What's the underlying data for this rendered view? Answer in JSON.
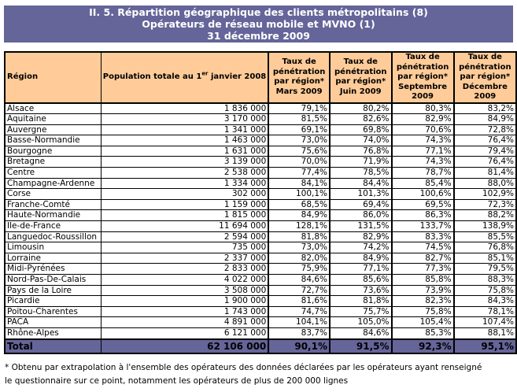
{
  "title": {
    "line1": "II. 5. Répartition géographique des clients métropolitains (8)",
    "line2": "Opérateurs de réseau mobile et MVNO (1)",
    "line3": "31 décembre 2009"
  },
  "colors": {
    "banner": "#65659a",
    "header": "#ffcc99"
  },
  "headers": {
    "region": "Région",
    "pop_pre": "Population totale au 1",
    "pop_sup": "er",
    "pop_post": " janvier 2008",
    "rate": [
      "Taux de pénétration par région* Mars 2009",
      "Taux de pénétration par région* Juin 2009",
      "Taux de pénétration par région* Septembre 2009",
      "Taux de pénétration par région* Décembre 2009"
    ]
  },
  "rows": [
    [
      "Alsace",
      "1 836 000",
      "79,1%",
      "80,2%",
      "80,3%",
      "83,2%"
    ],
    [
      "Aquitaine",
      "3 170 000",
      "81,5%",
      "82,6%",
      "82,9%",
      "84,9%"
    ],
    [
      "Auvergne",
      "1 341 000",
      "69,1%",
      "69,8%",
      "70,6%",
      "72,8%"
    ],
    [
      "Basse-Normandie",
      "1 463 000",
      "73,0%",
      "74,0%",
      "74,3%",
      "76,4%"
    ],
    [
      "Bourgogne",
      "1 631 000",
      "75,6%",
      "76,8%",
      "77,1%",
      "79,4%"
    ],
    [
      "Bretagne",
      "3 139 000",
      "70,0%",
      "71,9%",
      "74,3%",
      "76,4%"
    ],
    [
      "Centre",
      "2 538 000",
      "77,4%",
      "78,5%",
      "78,7%",
      "81,4%"
    ],
    [
      "Champagne-Ardenne",
      "1 334 000",
      "84,1%",
      "84,4%",
      "85,4%",
      "88,0%"
    ],
    [
      "Corse",
      "302 000",
      "100,1%",
      "101,3%",
      "100,6%",
      "102,9%"
    ],
    [
      "Franche-Comté",
      "1 159 000",
      "68,5%",
      "69,4%",
      "69,5%",
      "72,3%"
    ],
    [
      "Haute-Normandie",
      "1 815 000",
      "84,9%",
      "86,0%",
      "86,3%",
      "88,2%"
    ],
    [
      "Ile-de-France",
      "11 694 000",
      "128,1%",
      "131,5%",
      "133,7%",
      "138,9%"
    ],
    [
      "Languedoc-Roussillon",
      "2 594 000",
      "81,8%",
      "82,9%",
      "83,3%",
      "85,5%"
    ],
    [
      "Limousin",
      "735 000",
      "73,0%",
      "74,2%",
      "74,5%",
      "76,8%"
    ],
    [
      "Lorraine",
      "2 337 000",
      "82,0%",
      "84,9%",
      "82,7%",
      "85,1%"
    ],
    [
      "Midi-Pyrénées",
      "2 833 000",
      "75,9%",
      "77,1%",
      "77,3%",
      "79,5%"
    ],
    [
      "Nord-Pas-De-Calais",
      "4 022 000",
      "84,6%",
      "85,6%",
      "85,8%",
      "88,3%"
    ],
    [
      "Pays de la Loire",
      "3 508 000",
      "72,7%",
      "73,6%",
      "73,9%",
      "75,8%"
    ],
    [
      "Picardie",
      "1 900 000",
      "81,6%",
      "81,8%",
      "82,3%",
      "84,3%"
    ],
    [
      "Poitou-Charentes",
      "1 743 000",
      "74,7%",
      "75,7%",
      "75,8%",
      "78,1%"
    ],
    [
      "PACA",
      "4 891 000",
      "104,1%",
      "105,0%",
      "105,4%",
      "107,4%"
    ],
    [
      "Rhône-Alpes",
      "6 121 000",
      "83,7%",
      "84,6%",
      "85,3%",
      "88,1%"
    ]
  ],
  "total": [
    "Total",
    "62 106 000",
    "90,1%",
    "91,5%",
    "92,3%",
    "95,1%"
  ],
  "footnote": {
    "line1": "* Obtenu par extrapolation à l'ensemble des opérateurs des données déclarées par les opérateurs ayant renseigné",
    "line2": "le questionnaire sur ce point, notamment les opérateurs de plus de 200 000 lignes"
  }
}
